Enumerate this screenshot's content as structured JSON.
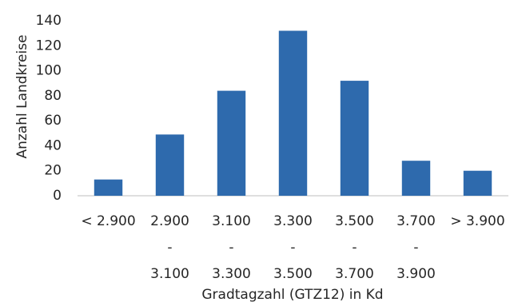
{
  "chart_data": {
    "type": "bar",
    "categories": [
      [
        "< 2.900"
      ],
      [
        "2.900",
        "-",
        "3.100"
      ],
      [
        "3.100",
        "-",
        "3.300"
      ],
      [
        "3.300",
        "-",
        "3.500"
      ],
      [
        "3.500",
        "-",
        "3.700"
      ],
      [
        "3.700",
        "-",
        "3.900"
      ],
      [
        "> 3.900"
      ]
    ],
    "values": [
      13,
      49,
      84,
      132,
      92,
      28,
      20
    ],
    "ylim": [
      0,
      140
    ],
    "yticks": [
      0,
      20,
      40,
      60,
      80,
      100,
      120,
      140
    ],
    "xlabel": "Gradtagzahl (GTZ12) in Kd",
    "ylabel": "Anzahl Landkreise",
    "bar_color": "#2e6aad",
    "grid": false,
    "legend": "none"
  }
}
